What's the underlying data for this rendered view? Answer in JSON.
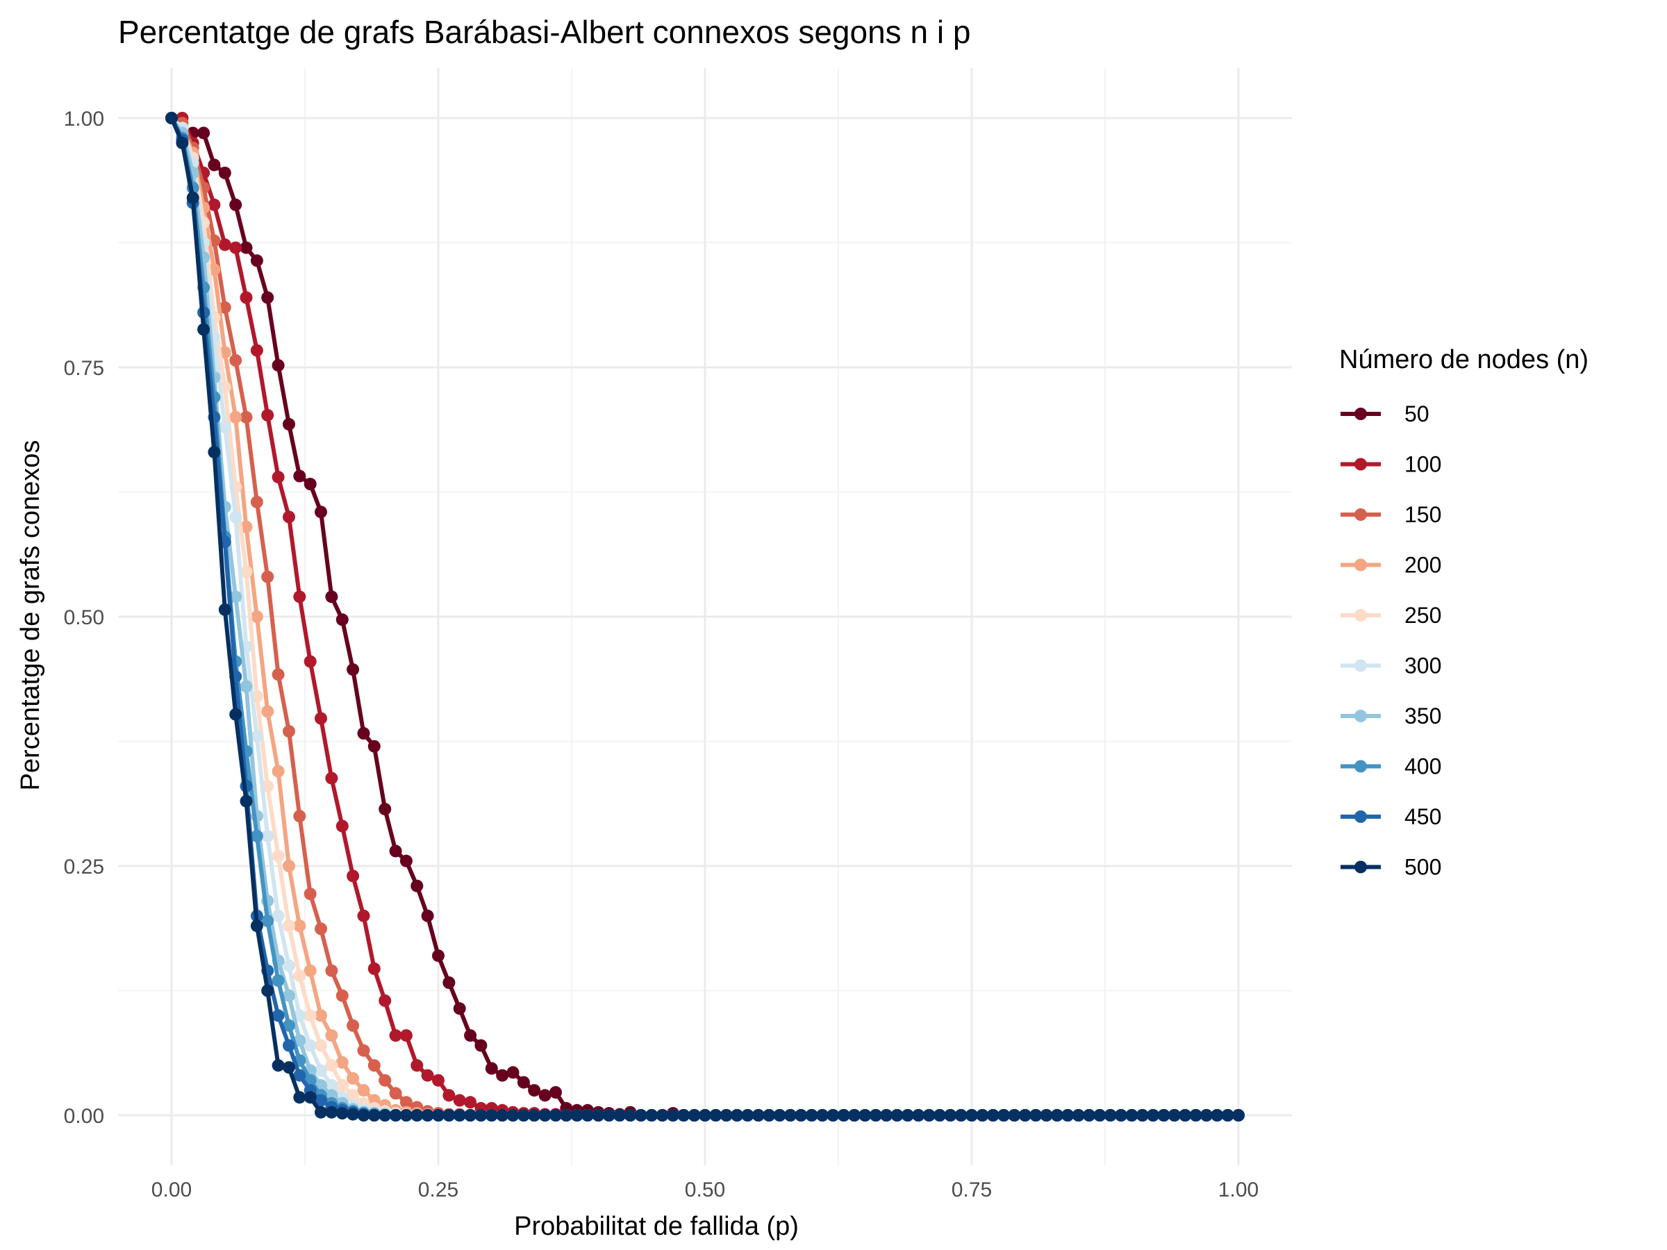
{
  "chart_data": {
    "type": "line",
    "title": "Percentatge de grafs Barábasi-Albert connexos segons n i p",
    "xlabel": "Probabilitat de fallida (p)",
    "ylabel": "Percentatge de grafs conexos",
    "xlim": [
      0,
      1
    ],
    "ylim": [
      0,
      1
    ],
    "x_ticks": [
      "0.00",
      "0.25",
      "0.50",
      "0.75",
      "1.00"
    ],
    "y_ticks": [
      "0.00",
      "0.25",
      "0.50",
      "0.75",
      "1.00"
    ],
    "legend_title": "Número de nodes (n)",
    "legend_position": "right",
    "x": [
      0.0,
      0.01,
      0.02,
      0.03,
      0.04,
      0.05,
      0.06,
      0.07,
      0.08,
      0.09,
      0.1,
      0.11,
      0.12,
      0.13,
      0.14,
      0.15,
      0.16,
      0.17,
      0.18,
      0.19,
      0.2,
      0.21,
      0.22,
      0.23,
      0.24,
      0.25,
      0.26,
      0.27,
      0.28,
      0.29,
      0.3,
      0.31,
      0.32,
      0.33,
      0.34,
      0.35,
      0.36,
      0.37,
      0.38,
      0.39,
      0.4,
      0.41,
      0.42,
      0.43,
      0.44,
      0.45,
      0.46,
      0.47,
      0.48,
      0.49,
      0.5,
      0.51,
      0.52,
      0.53,
      0.54,
      0.55,
      0.56,
      0.57,
      0.58,
      0.59,
      0.6,
      0.61,
      0.62,
      0.63,
      0.64,
      0.65,
      0.66,
      0.67,
      0.68,
      0.69,
      0.7,
      0.71,
      0.72,
      0.73,
      0.74,
      0.75,
      0.76,
      0.77,
      0.78,
      0.79,
      0.8,
      0.81,
      0.82,
      0.83,
      0.84,
      0.85,
      0.86,
      0.87,
      0.88,
      0.89,
      0.9,
      0.91,
      0.92,
      0.93,
      0.94,
      0.95,
      0.96,
      0.97,
      0.98,
      0.99,
      1.0
    ],
    "series": [
      {
        "name": "50",
        "color": "#67001f",
        "values": [
          1.0,
          0.99,
          0.985,
          0.985,
          0.953,
          0.945,
          0.913,
          0.87,
          0.857,
          0.82,
          0.752,
          0.693,
          0.641,
          0.633,
          0.605,
          0.52,
          0.497,
          0.447,
          0.383,
          0.37,
          0.307,
          0.265,
          0.255,
          0.23,
          0.2,
          0.16,
          0.133,
          0.107,
          0.08,
          0.07,
          0.047,
          0.04,
          0.043,
          0.033,
          0.025,
          0.02,
          0.023,
          0.007,
          0.005,
          0.005,
          0.003,
          0.002,
          0.001,
          0.003,
          0.0,
          0.0,
          0.0,
          0.002,
          0.0,
          0.0,
          0,
          0,
          0,
          0,
          0,
          0,
          0,
          0,
          0,
          0,
          0,
          0,
          0,
          0,
          0,
          0,
          0,
          0,
          0,
          0,
          0,
          0,
          0,
          0,
          0,
          0,
          0,
          0,
          0,
          0,
          0,
          0,
          0,
          0,
          0,
          0,
          0,
          0,
          0,
          0,
          0,
          0,
          0,
          0,
          0,
          0,
          0,
          0,
          0,
          0,
          0
        ]
      },
      {
        "name": "100",
        "color": "#b2182b",
        "values": [
          1.0,
          1.0,
          0.975,
          0.945,
          0.913,
          0.873,
          0.87,
          0.82,
          0.767,
          0.702,
          0.64,
          0.6,
          0.52,
          0.455,
          0.398,
          0.338,
          0.29,
          0.24,
          0.2,
          0.147,
          0.115,
          0.08,
          0.08,
          0.05,
          0.04,
          0.035,
          0.02,
          0.015,
          0.013,
          0.007,
          0.007,
          0.005,
          0.003,
          0.002,
          0.002,
          0.001,
          0.001,
          0.0,
          0.0,
          0.0,
          0,
          0,
          0,
          0,
          0,
          0,
          0,
          0,
          0,
          0,
          0,
          0,
          0,
          0,
          0,
          0,
          0,
          0,
          0,
          0,
          0,
          0,
          0,
          0,
          0,
          0,
          0,
          0,
          0,
          0,
          0,
          0,
          0,
          0,
          0,
          0,
          0,
          0,
          0,
          0,
          0,
          0,
          0,
          0,
          0,
          0,
          0,
          0,
          0,
          0,
          0,
          0,
          0,
          0,
          0,
          0,
          0,
          0,
          0,
          0,
          0
        ]
      },
      {
        "name": "150",
        "color": "#d6604d",
        "values": [
          1.0,
          0.995,
          0.97,
          0.93,
          0.877,
          0.81,
          0.757,
          0.7,
          0.615,
          0.54,
          0.442,
          0.385,
          0.3,
          0.222,
          0.187,
          0.145,
          0.12,
          0.09,
          0.065,
          0.05,
          0.035,
          0.022,
          0.013,
          0.008,
          0.004,
          0.002,
          0.001,
          0.001,
          0.0,
          0.0,
          0,
          0,
          0,
          0,
          0,
          0,
          0,
          0,
          0,
          0,
          0,
          0,
          0,
          0,
          0,
          0,
          0,
          0,
          0,
          0,
          0,
          0,
          0,
          0,
          0,
          0,
          0,
          0,
          0,
          0,
          0,
          0,
          0,
          0,
          0,
          0,
          0,
          0,
          0,
          0,
          0,
          0,
          0,
          0,
          0,
          0,
          0,
          0,
          0,
          0,
          0,
          0,
          0,
          0,
          0,
          0,
          0,
          0,
          0,
          0,
          0,
          0,
          0,
          0,
          0,
          0,
          0,
          0,
          0,
          0,
          0
        ]
      },
      {
        "name": "200",
        "color": "#f4a582",
        "values": [
          1.0,
          0.99,
          0.965,
          0.91,
          0.848,
          0.765,
          0.7,
          0.59,
          0.5,
          0.405,
          0.345,
          0.25,
          0.19,
          0.145,
          0.1,
          0.08,
          0.053,
          0.037,
          0.025,
          0.015,
          0.01,
          0.005,
          0.003,
          0.002,
          0.001,
          0.0,
          0.0,
          0,
          0,
          0,
          0,
          0,
          0,
          0,
          0,
          0,
          0,
          0,
          0,
          0,
          0,
          0,
          0,
          0,
          0,
          0,
          0,
          0,
          0,
          0,
          0,
          0,
          0,
          0,
          0,
          0,
          0,
          0,
          0,
          0,
          0,
          0,
          0,
          0,
          0,
          0,
          0,
          0,
          0,
          0,
          0,
          0,
          0,
          0,
          0,
          0,
          0,
          0,
          0,
          0,
          0,
          0,
          0,
          0,
          0,
          0,
          0,
          0,
          0,
          0,
          0,
          0,
          0,
          0,
          0,
          0,
          0,
          0,
          0,
          0,
          0
        ]
      },
      {
        "name": "250",
        "color": "#fddbc7",
        "values": [
          1.0,
          0.99,
          0.96,
          0.895,
          0.8,
          0.73,
          0.63,
          0.545,
          0.42,
          0.33,
          0.26,
          0.19,
          0.14,
          0.1,
          0.07,
          0.05,
          0.03,
          0.02,
          0.012,
          0.007,
          0.004,
          0.002,
          0.001,
          0.0,
          0.0,
          0,
          0,
          0,
          0,
          0,
          0,
          0,
          0,
          0,
          0,
          0,
          0,
          0,
          0,
          0,
          0,
          0,
          0,
          0,
          0,
          0,
          0,
          0,
          0,
          0,
          0,
          0,
          0,
          0,
          0,
          0,
          0,
          0,
          0,
          0,
          0,
          0,
          0,
          0,
          0,
          0,
          0,
          0,
          0,
          0,
          0,
          0,
          0,
          0,
          0,
          0,
          0,
          0,
          0,
          0,
          0,
          0,
          0,
          0,
          0,
          0,
          0,
          0,
          0,
          0,
          0,
          0,
          0,
          0,
          0,
          0,
          0,
          0,
          0,
          0,
          0
        ]
      },
      {
        "name": "300",
        "color": "#d1e5f0",
        "values": [
          1.0,
          0.99,
          0.955,
          0.875,
          0.78,
          0.69,
          0.6,
          0.47,
          0.38,
          0.28,
          0.2,
          0.15,
          0.1,
          0.07,
          0.045,
          0.03,
          0.018,
          0.01,
          0.006,
          0.003,
          0.002,
          0.001,
          0.0,
          0.0,
          0,
          0,
          0,
          0,
          0,
          0,
          0,
          0,
          0,
          0,
          0,
          0,
          0,
          0,
          0,
          0,
          0,
          0,
          0,
          0,
          0,
          0,
          0,
          0,
          0,
          0,
          0,
          0,
          0,
          0,
          0,
          0,
          0,
          0,
          0,
          0,
          0,
          0,
          0,
          0,
          0,
          0,
          0,
          0,
          0,
          0,
          0,
          0,
          0,
          0,
          0,
          0,
          0,
          0,
          0,
          0,
          0,
          0,
          0,
          0,
          0,
          0,
          0,
          0,
          0,
          0,
          0,
          0,
          0,
          0,
          0,
          0,
          0,
          0,
          0,
          0,
          0
        ]
      },
      {
        "name": "350",
        "color": "#92c5de",
        "values": [
          1.0,
          0.985,
          0.945,
          0.86,
          0.74,
          0.61,
          0.52,
          0.43,
          0.3,
          0.215,
          0.155,
          0.12,
          0.075,
          0.045,
          0.03,
          0.02,
          0.012,
          0.006,
          0.003,
          0.002,
          0.001,
          0.0,
          0.0,
          0,
          0,
          0,
          0,
          0,
          0,
          0,
          0,
          0,
          0,
          0,
          0,
          0,
          0,
          0,
          0,
          0,
          0,
          0,
          0,
          0,
          0,
          0,
          0,
          0,
          0,
          0,
          0,
          0,
          0,
          0,
          0,
          0,
          0,
          0,
          0,
          0,
          0,
          0,
          0,
          0,
          0,
          0,
          0,
          0,
          0,
          0,
          0,
          0,
          0,
          0,
          0,
          0,
          0,
          0,
          0,
          0,
          0,
          0,
          0,
          0,
          0,
          0,
          0,
          0,
          0,
          0,
          0,
          0,
          0,
          0,
          0,
          0,
          0,
          0,
          0,
          0,
          0
        ]
      },
      {
        "name": "400",
        "color": "#4393c3",
        "values": [
          1.0,
          0.98,
          0.93,
          0.83,
          0.72,
          0.58,
          0.455,
          0.365,
          0.28,
          0.195,
          0.135,
          0.09,
          0.055,
          0.035,
          0.02,
          0.012,
          0.007,
          0.004,
          0.002,
          0.001,
          0.0,
          0.0,
          0,
          0,
          0,
          0,
          0,
          0,
          0,
          0,
          0,
          0,
          0,
          0,
          0,
          0,
          0,
          0,
          0,
          0,
          0,
          0,
          0,
          0,
          0,
          0,
          0,
          0,
          0,
          0,
          0,
          0,
          0,
          0,
          0,
          0,
          0,
          0,
          0,
          0,
          0,
          0,
          0,
          0,
          0,
          0,
          0,
          0,
          0,
          0,
          0,
          0,
          0,
          0,
          0,
          0,
          0,
          0,
          0,
          0,
          0,
          0,
          0,
          0,
          0,
          0,
          0,
          0,
          0,
          0,
          0,
          0,
          0,
          0,
          0,
          0,
          0,
          0,
          0,
          0,
          0
        ]
      },
      {
        "name": "450",
        "color": "#2166ac",
        "values": [
          1.0,
          0.978,
          0.915,
          0.805,
          0.7,
          0.575,
          0.44,
          0.33,
          0.2,
          0.145,
          0.1,
          0.07,
          0.04,
          0.025,
          0.015,
          0.008,
          0.005,
          0.003,
          0.001,
          0.0,
          0.0,
          0,
          0,
          0,
          0,
          0,
          0,
          0,
          0,
          0,
          0,
          0,
          0,
          0,
          0,
          0,
          0,
          0,
          0,
          0,
          0,
          0,
          0,
          0,
          0,
          0,
          0,
          0,
          0,
          0,
          0,
          0,
          0,
          0,
          0,
          0,
          0,
          0,
          0,
          0,
          0,
          0,
          0,
          0,
          0,
          0,
          0,
          0,
          0,
          0,
          0,
          0,
          0,
          0,
          0,
          0,
          0,
          0,
          0,
          0,
          0,
          0,
          0,
          0,
          0,
          0,
          0,
          0,
          0,
          0,
          0,
          0,
          0,
          0,
          0,
          0,
          0,
          0,
          0,
          0,
          0
        ]
      },
      {
        "name": "500",
        "color": "#053061",
        "values": [
          1.0,
          0.975,
          0.92,
          0.788,
          0.665,
          0.507,
          0.402,
          0.315,
          0.19,
          0.125,
          0.05,
          0.048,
          0.018,
          0.018,
          0.003,
          0.003,
          0.002,
          0.001,
          0.0,
          0.0,
          0,
          0,
          0,
          0,
          0,
          0,
          0,
          0,
          0,
          0,
          0,
          0,
          0,
          0,
          0,
          0,
          0,
          0,
          0,
          0,
          0,
          0,
          0,
          0,
          0,
          0,
          0,
          0,
          0,
          0,
          0,
          0,
          0,
          0,
          0,
          0,
          0,
          0,
          0,
          0,
          0,
          0,
          0,
          0,
          0,
          0,
          0,
          0,
          0,
          0,
          0,
          0,
          0,
          0,
          0,
          0,
          0,
          0,
          0,
          0,
          0,
          0,
          0,
          0,
          0,
          0,
          0,
          0,
          0,
          0,
          0,
          0,
          0,
          0,
          0,
          0,
          0,
          0,
          0,
          0,
          0
        ]
      }
    ]
  }
}
